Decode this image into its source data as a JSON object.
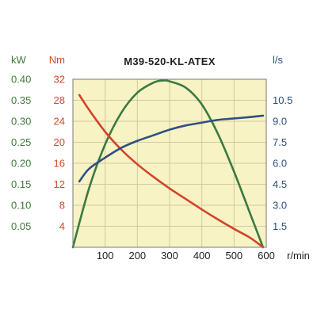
{
  "chart_data": {
    "type": "line",
    "title": "M39-520-KL-ATEX",
    "x_axis": {
      "unit": "r/min",
      "range": [
        0,
        600
      ],
      "ticks": [
        "100",
        "200",
        "300",
        "400",
        "500",
        "600"
      ],
      "tick_values": [
        100,
        200,
        300,
        400,
        500,
        600
      ]
    },
    "axes": [
      {
        "id": "kw",
        "unit": "kW",
        "side": "left-outer",
        "color": "#3f7a3a",
        "range": [
          0,
          0.4
        ],
        "ticks": [
          "0.40",
          "0.35",
          "0.30",
          "0.25",
          "0.20",
          "0.15",
          "0.10",
          "0.05"
        ],
        "tick_values": [
          0.4,
          0.35,
          0.3,
          0.25,
          0.2,
          0.15,
          0.1,
          0.05
        ]
      },
      {
        "id": "nm",
        "unit": "Nm",
        "side": "left-inner",
        "color": "#d24a26",
        "range": [
          0,
          32
        ],
        "ticks": [
          "32",
          "28",
          "24",
          "20",
          "16",
          "12",
          "8",
          "4"
        ],
        "tick_values": [
          32,
          28,
          24,
          20,
          16,
          12,
          8,
          4
        ]
      },
      {
        "id": "ls",
        "unit": "l/s",
        "side": "right",
        "color": "#2e4f7a",
        "range": [
          0,
          12
        ],
        "ticks": [
          "10.5",
          "9.0",
          "7.5",
          "6.0",
          "4.5",
          "3.0",
          "1.5"
        ],
        "tick_values": [
          10.5,
          9.0,
          7.5,
          6.0,
          4.5,
          3.0,
          1.5
        ]
      }
    ],
    "series": [
      {
        "axis": "kw",
        "color": "#3a7a42",
        "points": [
          [
            0,
            0
          ],
          [
            50,
            0.14
          ],
          [
            100,
            0.245
          ],
          [
            150,
            0.32
          ],
          [
            200,
            0.368
          ],
          [
            250,
            0.392
          ],
          [
            280,
            0.397
          ],
          [
            300,
            0.395
          ],
          [
            350,
            0.38
          ],
          [
            400,
            0.34
          ],
          [
            450,
            0.27
          ],
          [
            500,
            0.18
          ],
          [
            550,
            0.08
          ],
          [
            590,
            0.0
          ]
        ]
      },
      {
        "axis": "nm",
        "color": "#d3432a",
        "points": [
          [
            20,
            29
          ],
          [
            50,
            26.2
          ],
          [
            100,
            22
          ],
          [
            150,
            18.6
          ],
          [
            200,
            15.8
          ],
          [
            250,
            13.4
          ],
          [
            300,
            11.2
          ],
          [
            350,
            9.2
          ],
          [
            400,
            7.2
          ],
          [
            450,
            5.3
          ],
          [
            500,
            3.5
          ],
          [
            550,
            1.8
          ],
          [
            590,
            0.0
          ]
        ]
      },
      {
        "axis": "ls",
        "color": "#2f5080",
        "points": [
          [
            20,
            4.7
          ],
          [
            50,
            5.6
          ],
          [
            100,
            6.4
          ],
          [
            150,
            7.1
          ],
          [
            200,
            7.6
          ],
          [
            250,
            8.0
          ],
          [
            300,
            8.4
          ],
          [
            350,
            8.7
          ],
          [
            400,
            8.9
          ],
          [
            450,
            9.1
          ],
          [
            500,
            9.2
          ],
          [
            550,
            9.3
          ],
          [
            590,
            9.4
          ]
        ]
      }
    ],
    "grid": true,
    "legend": "none"
  },
  "colors": {
    "plot_background": "#f8f3c4",
    "grid": "#cfc8a4",
    "frame": "#7a7a7a",
    "title": "#222222"
  }
}
